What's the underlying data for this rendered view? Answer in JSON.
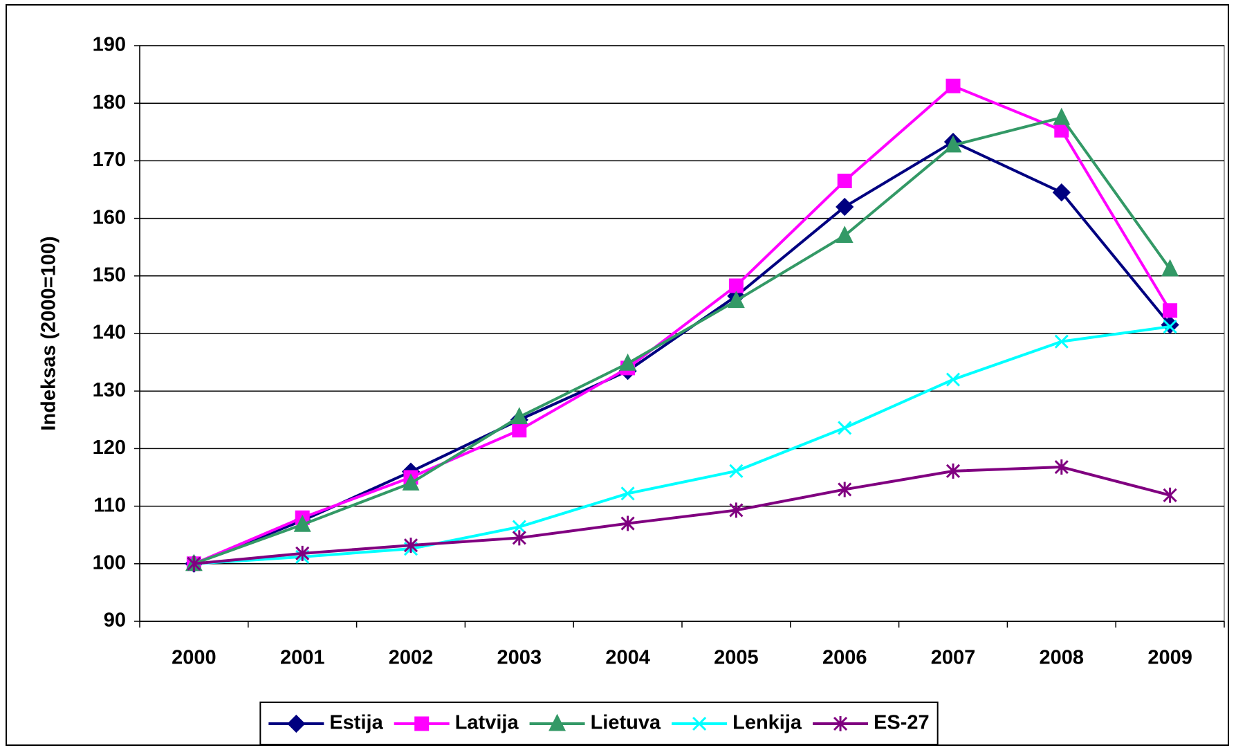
{
  "chart_data": {
    "type": "line",
    "y_label": "Indeksas (2000=100)",
    "categories": [
      "2000",
      "2001",
      "2002",
      "2003",
      "2004",
      "2005",
      "2006",
      "2007",
      "2008",
      "2009"
    ],
    "series": [
      {
        "name": "Estija",
        "color": "#000080",
        "marker": "diamond",
        "values": [
          100,
          107.5,
          116,
          125,
          133.5,
          146.5,
          162,
          173.3,
          164.5,
          141.5
        ]
      },
      {
        "name": "Latvija",
        "color": "#ff00ff",
        "marker": "square",
        "values": [
          100,
          108,
          115,
          123.2,
          134,
          148.3,
          166.5,
          183,
          175.3,
          144
        ]
      },
      {
        "name": "Lietuva",
        "color": "#339966",
        "marker": "triangle",
        "values": [
          100,
          106.8,
          114,
          125.5,
          134.8,
          145.7,
          157,
          172.7,
          177.5,
          151.2
        ]
      },
      {
        "name": "Lenkija",
        "color": "#00ffff",
        "marker": "x",
        "values": [
          100,
          101.2,
          102.6,
          106.4,
          112.2,
          116.1,
          123.6,
          132,
          138.6,
          141.2
        ]
      },
      {
        "name": "ES-27",
        "color": "#800080",
        "marker": "star",
        "values": [
          100,
          101.8,
          103.2,
          104.5,
          107,
          109.3,
          112.9,
          116.1,
          116.8,
          111.9
        ]
      }
    ],
    "ylim": [
      90,
      190
    ],
    "yticks": [
      90,
      100,
      110,
      120,
      130,
      140,
      150,
      160,
      170,
      180,
      190
    ],
    "grid": true,
    "legend": "bottom"
  }
}
